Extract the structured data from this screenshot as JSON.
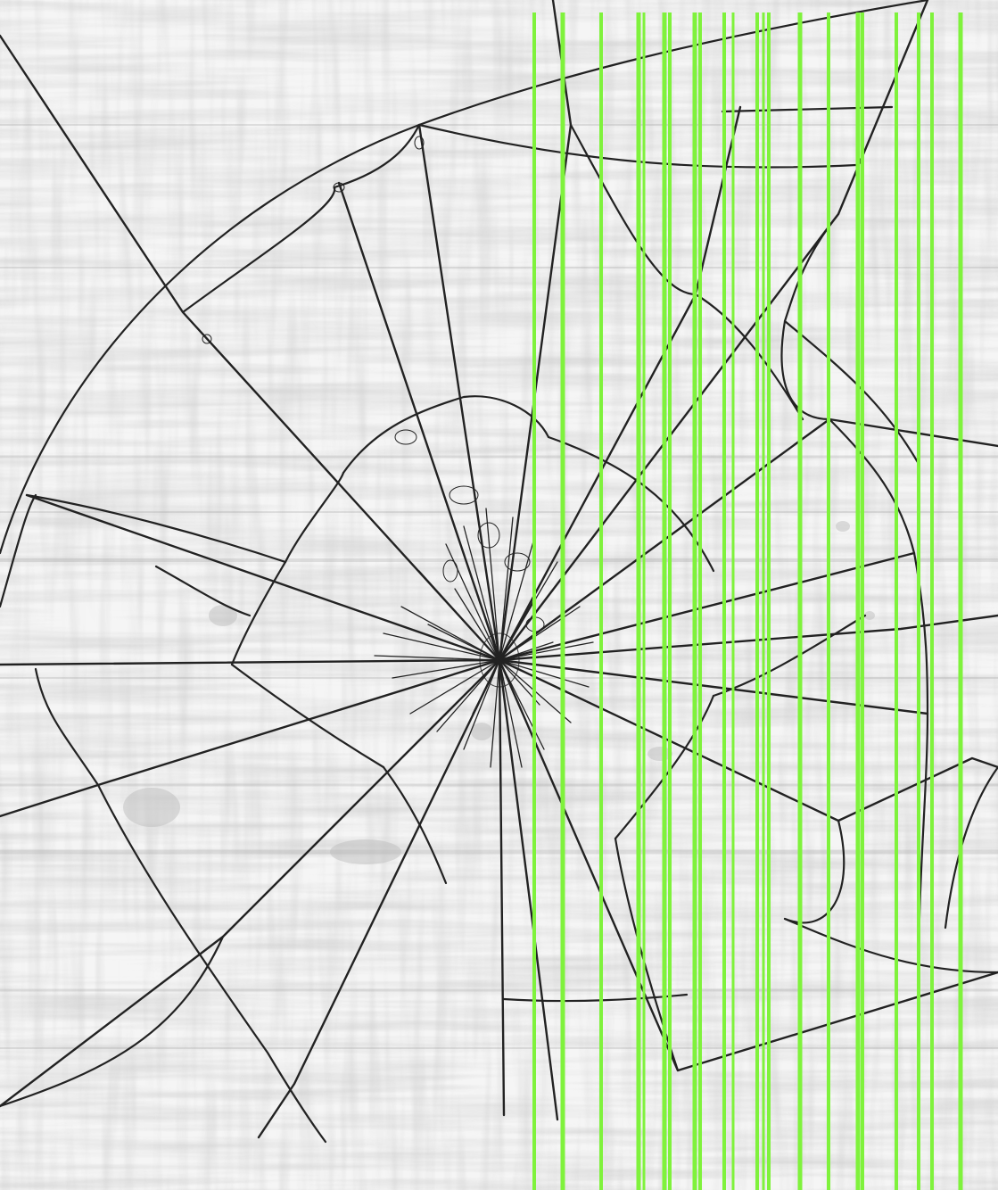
{
  "display": {
    "state": "cracked-screen",
    "background_color": "#f4f4f4",
    "crack_color": "#222222",
    "glitch_color": "#7ff23c"
  },
  "glitch": {
    "name": "vertical-line-artifacts",
    "line_count": 21
  },
  "icons": {
    "impact_point": "impact-point-icon"
  }
}
